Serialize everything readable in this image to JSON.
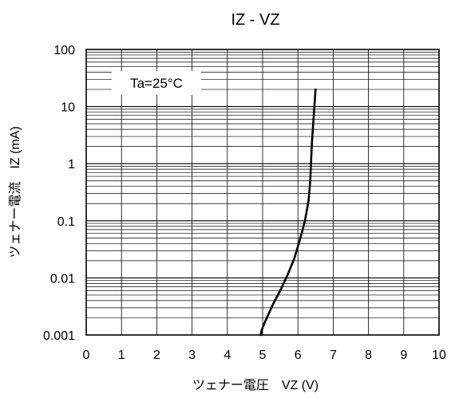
{
  "chart_data": {
    "type": "line",
    "title": "IZ - VZ",
    "xlabel": "ツェナー電圧　VZ (V)",
    "ylabel": "ツェナー電流　IZ (mA)",
    "xlim": [
      0,
      10
    ],
    "ylim": [
      0.001,
      100
    ],
    "yscale": "log",
    "grid": true,
    "x_ticks": [
      0,
      1,
      2,
      3,
      4,
      5,
      6,
      7,
      8,
      9,
      10
    ],
    "x_tick_labels": [
      "0",
      "1",
      "2",
      "3",
      "4",
      "5",
      "6",
      "7",
      "8",
      "9",
      "10"
    ],
    "y_ticks": [
      0.001,
      0.01,
      0.1,
      1,
      10,
      100
    ],
    "y_tick_labels": [
      "0.001",
      "0.01",
      "0.1",
      "1",
      "10",
      "100"
    ],
    "annotation": "Ta=25°C",
    "series": [
      {
        "x": [
          4.95,
          4.97,
          5.05,
          5.15,
          5.3,
          5.5,
          5.7,
          5.9,
          6.05,
          6.2,
          6.3,
          6.35,
          6.37,
          6.4,
          6.45,
          6.5
        ],
        "y": [
          0.001,
          0.0012,
          0.0016,
          0.0022,
          0.0035,
          0.006,
          0.011,
          0.022,
          0.045,
          0.1,
          0.22,
          0.5,
          1,
          2.5,
          7,
          20
        ]
      }
    ]
  }
}
